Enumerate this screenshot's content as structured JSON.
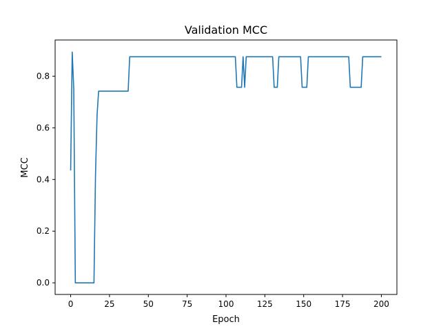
{
  "chart_data": {
    "type": "line",
    "title": "Validation MCC",
    "xlabel": "Epoch",
    "ylabel": "MCC",
    "xlim": [
      -10,
      210
    ],
    "ylim": [
      -0.045,
      0.94
    ],
    "xticks": [
      0,
      25,
      50,
      75,
      100,
      125,
      150,
      175,
      200
    ],
    "yticks": [
      0.0,
      0.2,
      0.4,
      0.6,
      0.8
    ],
    "ytick_labels": [
      "0.0",
      "0.2",
      "0.4",
      "0.6",
      "0.8"
    ],
    "grid": false,
    "legend": "none",
    "series": [
      {
        "color": "#1f77b4",
        "x": [
          0,
          1,
          2,
          3,
          4,
          15,
          16,
          17,
          18,
          37,
          38,
          106,
          107,
          110,
          111,
          112,
          113,
          130,
          131,
          133,
          134,
          148,
          149,
          152,
          153,
          179,
          180,
          187,
          188,
          200
        ],
        "y": [
          0.435,
          0.893,
          0.75,
          0.0,
          0.0,
          0.0,
          0.42,
          0.65,
          0.742,
          0.742,
          0.875,
          0.875,
          0.757,
          0.757,
          0.875,
          0.757,
          0.875,
          0.875,
          0.757,
          0.757,
          0.875,
          0.875,
          0.757,
          0.757,
          0.875,
          0.875,
          0.757,
          0.757,
          0.875,
          0.875
        ]
      }
    ]
  }
}
